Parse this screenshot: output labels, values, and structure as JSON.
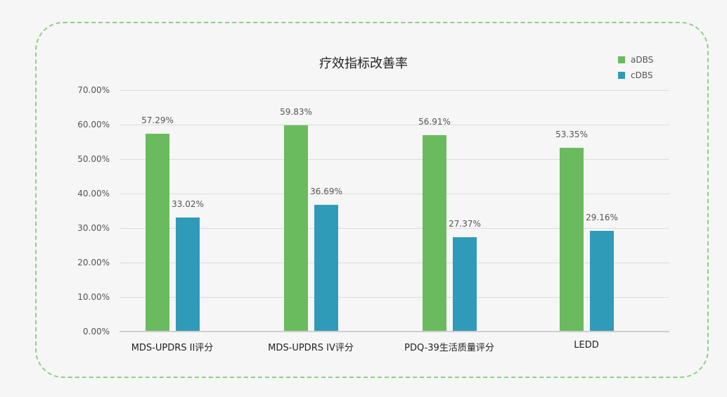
{
  "chart_data": {
    "type": "bar",
    "title": "疗效指标改善率",
    "xlabel": "",
    "ylabel": "",
    "categories": [
      "MDS-UPDRS II评分",
      "MDS-UPDRS IV评分",
      "PDQ-39生活质量评分",
      "LEDD"
    ],
    "series": [
      {
        "name": "aDBS",
        "color": "#6abb5d",
        "values": [
          57.29,
          59.83,
          56.91,
          53.35
        ],
        "labels": [
          "57.29%",
          "59.83%",
          "56.91%",
          "53.35%"
        ]
      },
      {
        "name": "cDBS",
        "color": "#309ab9",
        "values": [
          33.02,
          36.69,
          27.37,
          29.16
        ],
        "labels": [
          "33.02%",
          "36.69%",
          "27.37%",
          "29.16%"
        ]
      }
    ],
    "ylim": [
      0,
      70
    ],
    "yticks": [
      "0.00%",
      "10.00%",
      "20.00%",
      "30.00%",
      "40.00%",
      "50.00%",
      "60.00%",
      "70.00%"
    ],
    "grid": true,
    "legend_position": "top-right"
  }
}
